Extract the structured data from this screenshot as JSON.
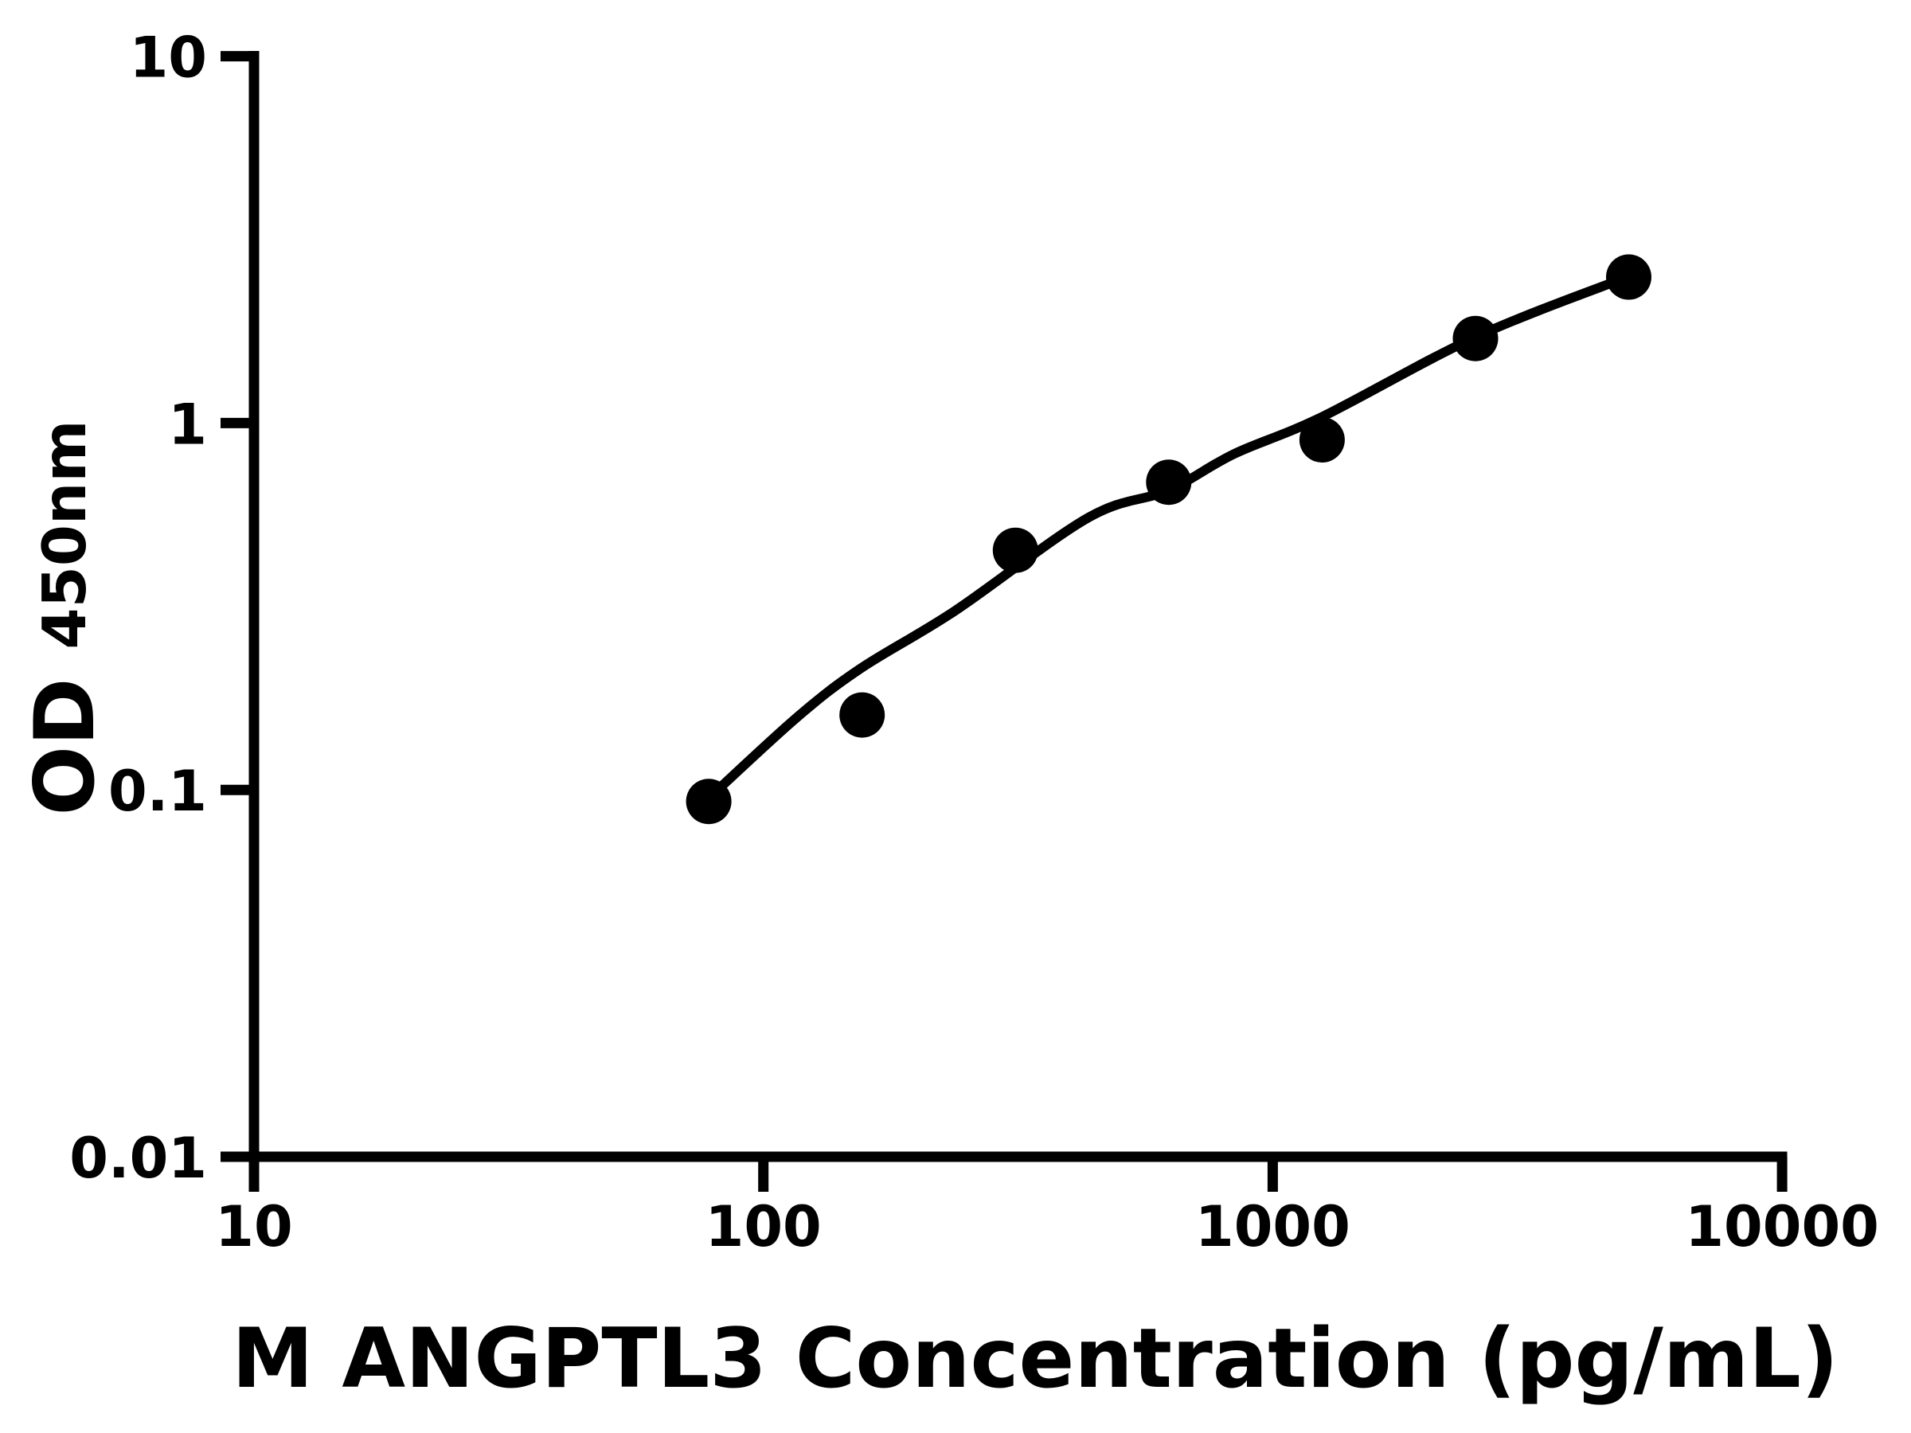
{
  "chart_data": {
    "type": "scatter",
    "title": "",
    "xlabel": "M ANGPTL3 Concentration (pg/mL)",
    "ylabel": "OD450nm",
    "ylabel_main": "OD",
    "ylabel_subscript": "450nm",
    "x_scale": "log10",
    "y_scale": "log10",
    "xlim": [
      10,
      10000
    ],
    "ylim": [
      0.01,
      10
    ],
    "grid": false,
    "legend": "none",
    "background_color": "#ffffff",
    "axis_color": "#000000",
    "marker": {
      "shape": "circle",
      "color": "#000000"
    },
    "line_color": "#000000",
    "x_ticks": [
      {
        "value": 10,
        "label": "10"
      },
      {
        "value": 100,
        "label": "100"
      },
      {
        "value": 1000,
        "label": "1000"
      },
      {
        "value": 10000,
        "label": "10000"
      }
    ],
    "y_ticks": [
      {
        "value": 10,
        "label": "10"
      },
      {
        "value": 1,
        "label": "1"
      },
      {
        "value": 0.1,
        "label": "0.1"
      },
      {
        "value": 0.01,
        "label": "0.01"
      }
    ],
    "points": [
      {
        "concentration_pg_ml": 78.125,
        "od": 0.093
      },
      {
        "concentration_pg_ml": 156.25,
        "od": 0.16
      },
      {
        "concentration_pg_ml": 312.5,
        "od": 0.45
      },
      {
        "concentration_pg_ml": 625,
        "od": 0.69
      },
      {
        "concentration_pg_ml": 1250,
        "od": 0.9
      },
      {
        "concentration_pg_ml": 2500,
        "od": 1.7
      },
      {
        "concentration_pg_ml": 5000,
        "od": 2.5
      }
    ],
    "trend_curve": {
      "description": "fitted ELISA standard curve through data points",
      "samples": [
        {
          "x": 77.5,
          "y": 0.094
        },
        {
          "x": 116,
          "y": 0.157
        },
        {
          "x": 155,
          "y": 0.214
        },
        {
          "x": 238,
          "y": 0.308
        },
        {
          "x": 435,
          "y": 0.553
        },
        {
          "x": 623,
          "y": 0.655
        },
        {
          "x": 840,
          "y": 0.824
        },
        {
          "x": 1250,
          "y": 1.04
        },
        {
          "x": 2510,
          "y": 1.72
        },
        {
          "x": 5000,
          "y": 2.51
        }
      ]
    }
  }
}
